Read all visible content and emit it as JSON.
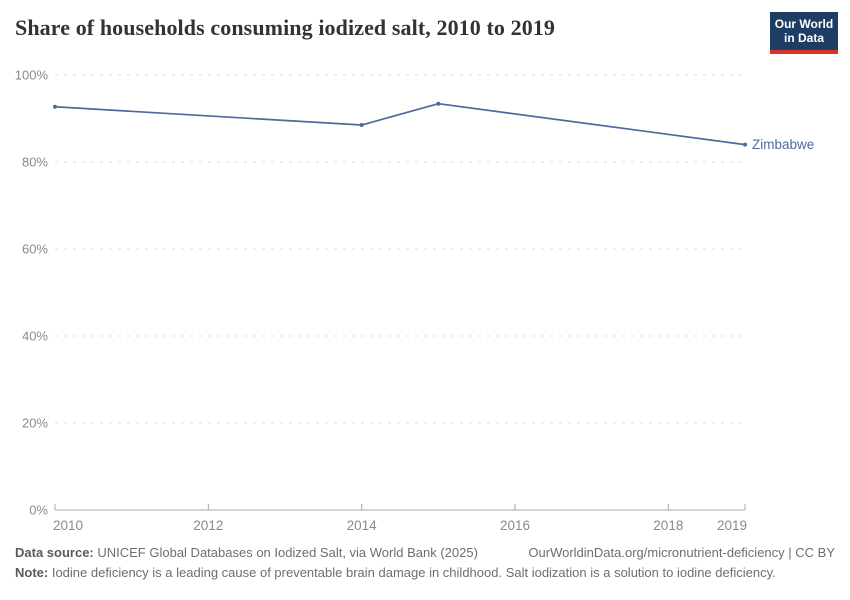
{
  "header": {
    "title": "Share of households consuming iodized salt, 2010 to 2019",
    "logo": {
      "line1": "Our World",
      "line2": "in Data"
    }
  },
  "chart_data": {
    "type": "line",
    "title": "Share of households consuming iodized salt, 2010 to 2019",
    "xlabel": "",
    "ylabel": "",
    "xlim": [
      2010,
      2019
    ],
    "ylim": [
      0,
      100
    ],
    "grid": "horizontal-dashed",
    "legend_position": "end-of-line-label",
    "colors": {
      "line": "#4c6a9c",
      "gridline": "#dcdcdc",
      "axis": "#a8a8a8",
      "tick_label": "#8a8a8a"
    },
    "yticks": [
      {
        "value": 0,
        "label": "0%"
      },
      {
        "value": 20,
        "label": "20%"
      },
      {
        "value": 40,
        "label": "40%"
      },
      {
        "value": 60,
        "label": "60%"
      },
      {
        "value": 80,
        "label": "80%"
      },
      {
        "value": 100,
        "label": "100%"
      }
    ],
    "xticks": [
      {
        "value": 2010,
        "label": "2010"
      },
      {
        "value": 2012,
        "label": "2012"
      },
      {
        "value": 2014,
        "label": "2014"
      },
      {
        "value": 2016,
        "label": "2016"
      },
      {
        "value": 2018,
        "label": "2018"
      },
      {
        "value": 2019,
        "label": "2019"
      }
    ],
    "series": [
      {
        "name": "Zimbabwe",
        "color": "#4c6a9c",
        "points": [
          {
            "x": 2010,
            "y": 92.7
          },
          {
            "x": 2014,
            "y": 88.5
          },
          {
            "x": 2015,
            "y": 93.4
          },
          {
            "x": 2019,
            "y": 84.0
          }
        ]
      }
    ]
  },
  "footer": {
    "data_source_label": "Data source:",
    "data_source_text": " UNICEF Global Databases on Iodized Salt, via World Bank (2025)",
    "link_text": "OurWorldinData.org/micronutrient-deficiency | CC BY",
    "note_label": "Note:",
    "note_text": " Iodine deficiency is a leading cause of preventable brain damage in childhood. Salt iodization is a solution to iodine deficiency."
  }
}
